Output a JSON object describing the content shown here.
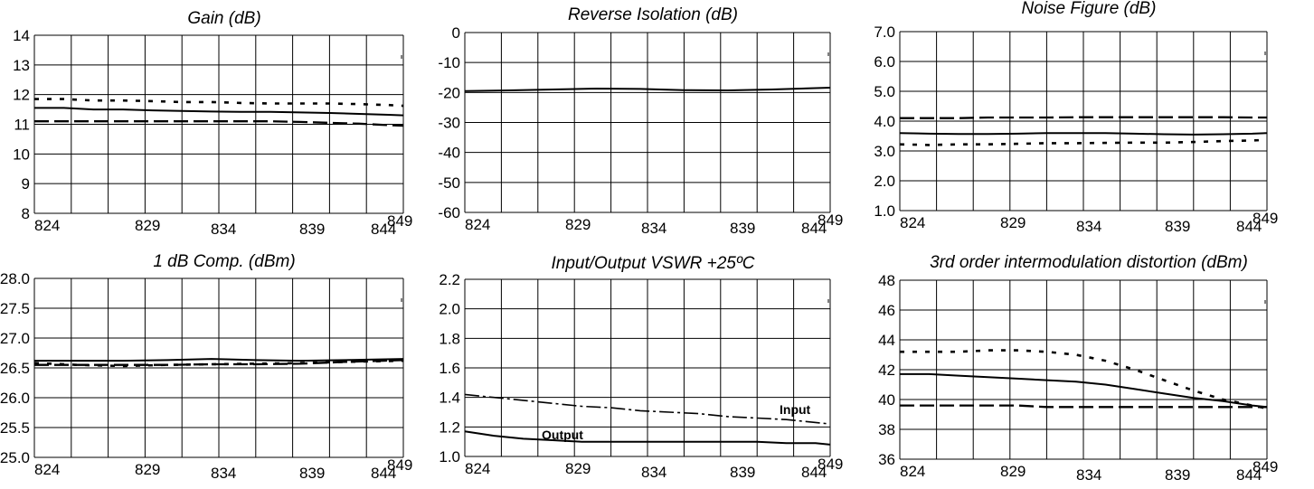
{
  "chart_data": [
    {
      "type": "line",
      "title": "Gain (dB)",
      "x": [
        824,
        826,
        828,
        830,
        832,
        834,
        836,
        838,
        840,
        842,
        844,
        846,
        848,
        849
      ],
      "xticks": [
        "824",
        "829",
        "834",
        "839",
        "844",
        "849"
      ],
      "yticks": [
        "14",
        "13",
        "12",
        "11",
        "10",
        "9",
        "8"
      ],
      "xlim": [
        824,
        849
      ],
      "ylim": [
        8,
        14
      ],
      "grid": true,
      "series": [
        {
          "style": "dotted",
          "values": [
            11.85,
            11.85,
            11.8,
            11.8,
            11.78,
            11.75,
            11.75,
            11.72,
            11.7,
            11.7,
            11.7,
            11.68,
            11.65,
            11.62
          ]
        },
        {
          "style": "solid",
          "values": [
            11.55,
            11.55,
            11.5,
            11.5,
            11.47,
            11.45,
            11.43,
            11.42,
            11.42,
            11.4,
            11.38,
            11.35,
            11.32,
            11.3
          ]
        },
        {
          "style": "dashed",
          "values": [
            11.1,
            11.1,
            11.1,
            11.1,
            11.1,
            11.1,
            11.1,
            11.1,
            11.1,
            11.08,
            11.05,
            11.02,
            10.97,
            10.95
          ]
        }
      ]
    },
    {
      "type": "line",
      "title": "Reverse Isolation (dB)",
      "x": [
        824,
        827,
        830,
        833,
        836,
        839,
        842,
        845,
        849
      ],
      "xticks": [
        "824",
        "829",
        "834",
        "839",
        "844",
        "849"
      ],
      "yticks": [
        "0",
        "-10",
        "-20",
        "-30",
        "-40",
        "-50",
        "-60"
      ],
      "xlim": [
        824,
        849
      ],
      "ylim": [
        -60,
        0
      ],
      "grid": true,
      "series": [
        {
          "style": "solid",
          "values": [
            -19.5,
            -19.3,
            -19.0,
            -18.7,
            -18.8,
            -19.2,
            -19.3,
            -19.0,
            -18.4
          ]
        }
      ]
    },
    {
      "type": "line",
      "title": "Noise Figure (dB)",
      "x": [
        824,
        826,
        828,
        830,
        832,
        834,
        836,
        838,
        840,
        842,
        844,
        846,
        848,
        849
      ],
      "xticks": [
        "824",
        "829",
        "834",
        "839",
        "844",
        "849"
      ],
      "yticks": [
        "7.0",
        "6.0",
        "5.0",
        "4.0",
        "3.0",
        "2.0",
        "1.0"
      ],
      "xlim": [
        824,
        849
      ],
      "ylim": [
        1,
        7
      ],
      "grid": true,
      "series": [
        {
          "style": "dashed",
          "values": [
            4.1,
            4.1,
            4.1,
            4.12,
            4.12,
            4.12,
            4.13,
            4.13,
            4.13,
            4.13,
            4.13,
            4.13,
            4.12,
            4.12
          ]
        },
        {
          "style": "solid",
          "values": [
            3.6,
            3.58,
            3.57,
            3.57,
            3.58,
            3.6,
            3.6,
            3.6,
            3.58,
            3.56,
            3.55,
            3.56,
            3.58,
            3.6
          ]
        },
        {
          "style": "dotted",
          "values": [
            3.22,
            3.2,
            3.22,
            3.22,
            3.24,
            3.26,
            3.26,
            3.27,
            3.28,
            3.28,
            3.3,
            3.33,
            3.35,
            3.37
          ]
        }
      ]
    },
    {
      "type": "line",
      "title": "1 dB Comp. (dBm)",
      "x": [
        824,
        827,
        830,
        833,
        836,
        839,
        842,
        845,
        849
      ],
      "xticks": [
        "824",
        "829",
        "834",
        "839",
        "844",
        "849"
      ],
      "yticks": [
        "28.0",
        "27.5",
        "27.0",
        "26.5",
        "26.0",
        "25.5",
        "25.0"
      ],
      "xlim": [
        824,
        849
      ],
      "ylim": [
        25,
        28
      ],
      "grid": true,
      "series": [
        {
          "style": "solid",
          "values": [
            26.62,
            26.62,
            26.62,
            26.63,
            26.65,
            26.63,
            26.62,
            26.63,
            26.65
          ]
        },
        {
          "style": "dotted",
          "values": [
            26.58,
            26.55,
            26.53,
            26.55,
            26.56,
            26.57,
            26.58,
            26.6,
            26.62
          ]
        },
        {
          "style": "dashed",
          "values": [
            26.55,
            26.55,
            26.55,
            26.55,
            26.56,
            26.56,
            26.57,
            26.6,
            26.63
          ]
        }
      ]
    },
    {
      "type": "line",
      "title": "Input/Output VSWR +25ºC",
      "x": [
        824,
        826,
        828,
        830,
        832,
        834,
        836,
        838,
        840,
        842,
        844,
        846,
        848,
        849
      ],
      "xticks": [
        "824",
        "829",
        "834",
        "839",
        "844",
        "849"
      ],
      "yticks": [
        "2.2",
        "2.0",
        "1.8",
        "1.6",
        "1.4",
        "1.2",
        "1.0"
      ],
      "xlim": [
        824,
        849
      ],
      "ylim": [
        1,
        2.2
      ],
      "grid": true,
      "series": [
        {
          "name": "Input",
          "style": "dashdot",
          "values": [
            1.42,
            1.4,
            1.38,
            1.36,
            1.34,
            1.33,
            1.31,
            1.3,
            1.29,
            1.27,
            1.26,
            1.25,
            1.23,
            1.22
          ]
        },
        {
          "name": "Output",
          "style": "solid",
          "values": [
            1.17,
            1.14,
            1.12,
            1.11,
            1.1,
            1.1,
            1.1,
            1.1,
            1.1,
            1.1,
            1.1,
            1.09,
            1.09,
            1.08
          ]
        }
      ]
    },
    {
      "type": "line",
      "title": "3rd order intermodulation distortion (dBm)",
      "x": [
        824,
        826,
        828,
        830,
        832,
        834,
        836,
        838,
        840,
        842,
        844,
        846,
        848,
        849
      ],
      "xticks": [
        "824",
        "829",
        "834",
        "839",
        "844",
        "849"
      ],
      "yticks": [
        "48",
        "46",
        "44",
        "42",
        "40",
        "38",
        "36"
      ],
      "xlim": [
        824,
        849
      ],
      "ylim": [
        36,
        48
      ],
      "grid": true,
      "series": [
        {
          "style": "dotted",
          "values": [
            43.2,
            43.2,
            43.2,
            43.3,
            43.3,
            43.2,
            43.0,
            42.6,
            42.0,
            41.3,
            40.6,
            40.0,
            39.6,
            39.4
          ]
        },
        {
          "style": "solid",
          "values": [
            41.7,
            41.7,
            41.6,
            41.5,
            41.4,
            41.3,
            41.2,
            41.0,
            40.7,
            40.4,
            40.1,
            39.9,
            39.6,
            39.5
          ]
        },
        {
          "style": "dashed",
          "values": [
            39.6,
            39.6,
            39.6,
            39.6,
            39.6,
            39.5,
            39.5,
            39.5,
            39.5,
            39.5,
            39.5,
            39.5,
            39.5,
            39.5
          ]
        }
      ]
    }
  ]
}
